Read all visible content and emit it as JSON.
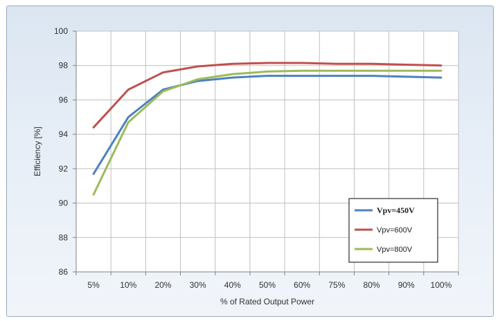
{
  "chart_data": {
    "type": "line",
    "title": "",
    "xlabel": "% of Rated Output Power",
    "ylabel": "Efficiency [%]",
    "categories": [
      "5%",
      "10%",
      "20%",
      "30%",
      "40%",
      "50%",
      "60%",
      "75%",
      "80%",
      "90%",
      "100%"
    ],
    "ylim": [
      86,
      100
    ],
    "yticks": [
      86,
      88,
      90,
      92,
      94,
      96,
      98,
      100
    ],
    "grid": true,
    "legend_position": "bottom-right",
    "series": [
      {
        "name": "Vpv=450V",
        "color": "#4f81bd",
        "values": [
          91.7,
          95.0,
          96.6,
          97.1,
          97.3,
          97.4,
          97.4,
          97.4,
          97.4,
          97.35,
          97.3
        ]
      },
      {
        "name": "Vpv=600V",
        "color": "#c0504d",
        "values": [
          94.4,
          96.6,
          97.6,
          97.95,
          98.1,
          98.15,
          98.15,
          98.1,
          98.1,
          98.05,
          98.0
        ]
      },
      {
        "name": "Vpv=800V",
        "color": "#9bbb59",
        "values": [
          90.5,
          94.7,
          96.5,
          97.2,
          97.5,
          97.65,
          97.7,
          97.7,
          97.7,
          97.7,
          97.7
        ]
      }
    ]
  }
}
